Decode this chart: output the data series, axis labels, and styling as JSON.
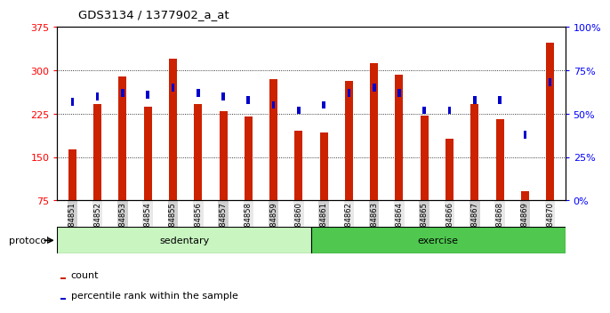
{
  "title": "GDS3134 / 1377902_a_at",
  "samples": [
    "GSM184851",
    "GSM184852",
    "GSM184853",
    "GSM184854",
    "GSM184855",
    "GSM184856",
    "GSM184857",
    "GSM184858",
    "GSM184859",
    "GSM184860",
    "GSM184861",
    "GSM184862",
    "GSM184863",
    "GSM184864",
    "GSM184865",
    "GSM184866",
    "GSM184867",
    "GSM184868",
    "GSM184869",
    "GSM184870"
  ],
  "counts": [
    163,
    242,
    289,
    237,
    320,
    242,
    230,
    220,
    285,
    195,
    193,
    282,
    313,
    293,
    222,
    181,
    242,
    215,
    90,
    348
  ],
  "percentiles": [
    57,
    60,
    62,
    61,
    65,
    62,
    60,
    58,
    55,
    52,
    55,
    62,
    65,
    62,
    52,
    52,
    58,
    58,
    38,
    68
  ],
  "groups": [
    "sedentary",
    "sedentary",
    "sedentary",
    "sedentary",
    "sedentary",
    "sedentary",
    "sedentary",
    "sedentary",
    "sedentary",
    "sedentary",
    "exercise",
    "exercise",
    "exercise",
    "exercise",
    "exercise",
    "exercise",
    "exercise",
    "exercise",
    "exercise",
    "exercise"
  ],
  "bar_color": "#CC2200",
  "percentile_color": "#0000CC",
  "ylim_left": [
    75,
    375
  ],
  "ylim_right": [
    0,
    100
  ],
  "yticks_left": [
    75,
    150,
    225,
    300,
    375
  ],
  "yticks_right": [
    0,
    25,
    50,
    75,
    100
  ],
  "sedentary_color": "#c8f5c0",
  "exercise_color": "#50c850",
  "legend_count_label": "count",
  "legend_pct_label": "percentile rank within the sample",
  "protocol_label": "protocol"
}
